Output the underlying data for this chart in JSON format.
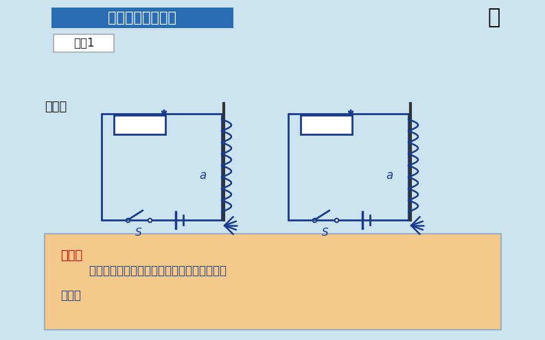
{
  "bg_color": "#cce4f0",
  "title_text": "二、电磁铁的磁性",
  "title_bg_left": "#2a6db5",
  "title_bg_right": "#5b9bd5",
  "title_fg": "#ffffff",
  "demo_text": "演示1",
  "phenomenon_text": "现象：",
  "circuit_color": "#1a3a8c",
  "label_a": "a",
  "label_s": "S",
  "conclusion_bg": "#f5c98a",
  "conclusion_border": "#9bafc0",
  "conclusion_title": "结论：",
  "conclusion_title_color": "#cc0000",
  "conclusion_line1": "        匝数一定时，通入的电流越大，电磁铁的磁性",
  "conclusion_line2": "越强。",
  "conclusion_color": "#1a3a8c"
}
